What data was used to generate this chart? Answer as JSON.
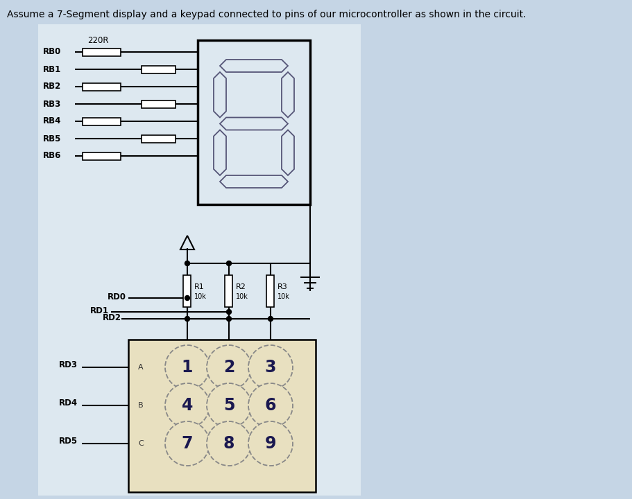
{
  "title": "Assume a 7-Segment display and a keypad connected to pins of our microcontroller as shown in the circuit.",
  "bg_color": "#c5d5e5",
  "panel_color": "#dde8f0",
  "seg_bg": "#dde8f0",
  "keypad_bg": "#e8e0c0",
  "rb_labels": [
    "RB0",
    "RB1",
    "RB2",
    "RB3",
    "RB4",
    "RB5",
    "RB6"
  ],
  "rd_top_labels": [
    "RD0",
    "RD1",
    "RD2"
  ],
  "rd_bot_labels": [
    "RD3",
    "RD4",
    "RD5"
  ],
  "resistor_220r": "220R",
  "r_names": [
    "R1",
    "R2",
    "R3"
  ],
  "r_val": "10k",
  "keypad_keys": [
    [
      "1",
      "2",
      "3"
    ],
    [
      "4",
      "5",
      "6"
    ],
    [
      "7",
      "8",
      "9"
    ]
  ],
  "keypad_row_labels": [
    "A",
    "B",
    "C"
  ],
  "keypad_col_nums": [
    "1",
    "2",
    "3"
  ],
  "lw": 1.5,
  "seg_outline_color": "#555577"
}
